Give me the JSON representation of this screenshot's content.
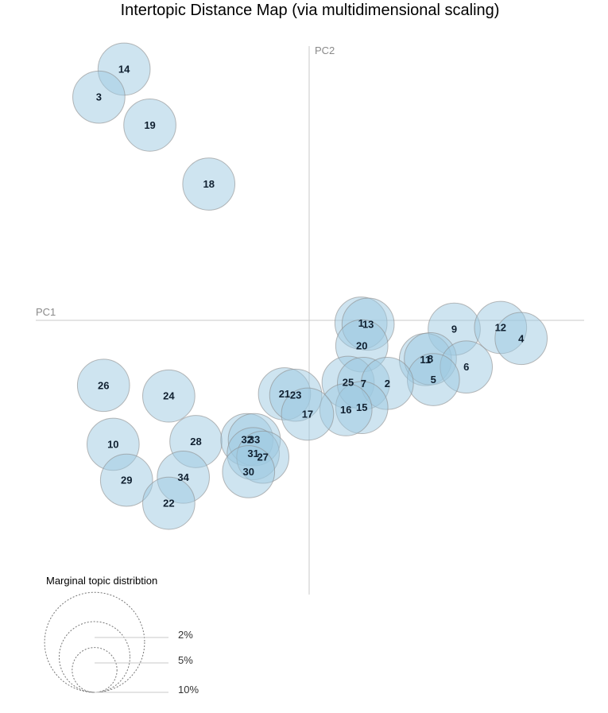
{
  "chart_data": {
    "type": "scatter",
    "title": "Intertopic Distance Map (via multidimensional scaling)",
    "xlabel": "PC1",
    "ylabel": "PC2",
    "xlim": [
      -1,
      1
    ],
    "ylim": [
      -1,
      1
    ],
    "grid": false,
    "points": [
      {
        "label": "14",
        "x": -0.675,
        "y": 0.916,
        "size": 2
      },
      {
        "label": "3",
        "x": -0.767,
        "y": 0.814,
        "size": 2
      },
      {
        "label": "19",
        "x": -0.581,
        "y": 0.712,
        "size": 2
      },
      {
        "label": "18",
        "x": -0.366,
        "y": 0.497,
        "size": 2
      },
      {
        "label": "1",
        "x": 0.189,
        "y": -0.01,
        "size": 2
      },
      {
        "label": "13",
        "x": 0.215,
        "y": -0.014,
        "size": 2
      },
      {
        "label": "9",
        "x": 0.529,
        "y": -0.032,
        "size": 2
      },
      {
        "label": "12",
        "x": 0.698,
        "y": -0.026,
        "size": 2
      },
      {
        "label": "4",
        "x": 0.773,
        "y": -0.066,
        "size": 2
      },
      {
        "label": "20",
        "x": 0.192,
        "y": -0.093,
        "size": 2
      },
      {
        "label": "11",
        "x": 0.424,
        "y": -0.143,
        "size": 2
      },
      {
        "label": "8",
        "x": 0.442,
        "y": -0.14,
        "size": 2
      },
      {
        "label": "6",
        "x": 0.573,
        "y": -0.17,
        "size": 2
      },
      {
        "label": "5",
        "x": 0.453,
        "y": -0.216,
        "size": 2
      },
      {
        "label": "25",
        "x": 0.142,
        "y": -0.226,
        "size": 2
      },
      {
        "label": "7",
        "x": 0.198,
        "y": -0.23,
        "size": 2
      },
      {
        "label": "2",
        "x": 0.285,
        "y": -0.23,
        "size": 2
      },
      {
        "label": "21",
        "x": -0.09,
        "y": -0.268,
        "size": 2
      },
      {
        "label": "23",
        "x": -0.049,
        "y": -0.273,
        "size": 2
      },
      {
        "label": "15",
        "x": 0.192,
        "y": -0.318,
        "size": 2
      },
      {
        "label": "16",
        "x": 0.134,
        "y": -0.326,
        "size": 2
      },
      {
        "label": "17",
        "x": -0.006,
        "y": -0.342,
        "size": 2
      },
      {
        "label": "26",
        "x": -0.75,
        "y": -0.237,
        "size": 2
      },
      {
        "label": "24",
        "x": -0.512,
        "y": -0.276,
        "size": 2
      },
      {
        "label": "10",
        "x": -0.715,
        "y": -0.452,
        "size": 2
      },
      {
        "label": "28",
        "x": -0.413,
        "y": -0.442,
        "size": 2
      },
      {
        "label": "32",
        "x": -0.227,
        "y": -0.435,
        "size": 2
      },
      {
        "label": "33",
        "x": -0.2,
        "y": -0.435,
        "size": 2
      },
      {
        "label": "31",
        "x": -0.204,
        "y": -0.486,
        "size": 2
      },
      {
        "label": "27",
        "x": -0.169,
        "y": -0.499,
        "size": 2
      },
      {
        "label": "30",
        "x": -0.221,
        "y": -0.552,
        "size": 2
      },
      {
        "label": "29",
        "x": -0.666,
        "y": -0.583,
        "size": 2
      },
      {
        "label": "34",
        "x": -0.459,
        "y": -0.572,
        "size": 2
      },
      {
        "label": "22",
        "x": -0.512,
        "y": -0.667,
        "size": 2
      }
    ]
  },
  "legend": {
    "title": "Marginal topic distribtion",
    "sizes": [
      {
        "label": "2%",
        "value": 2
      },
      {
        "label": "5%",
        "value": 5
      },
      {
        "label": "10%",
        "value": 10
      }
    ]
  }
}
